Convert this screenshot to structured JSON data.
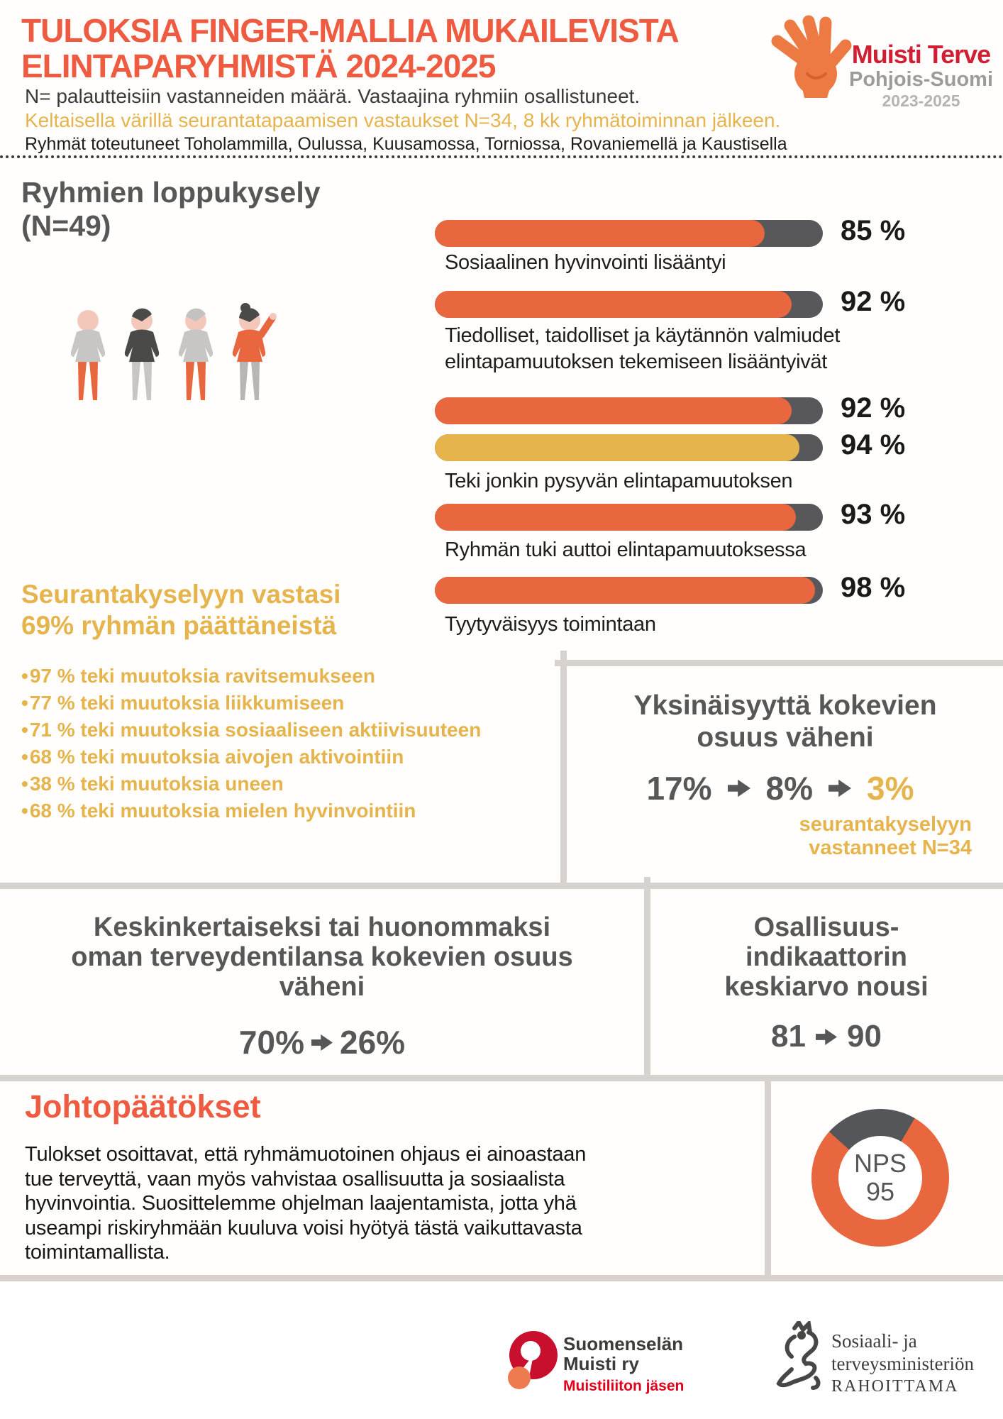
{
  "header": {
    "title_line1": "TULOKSIA FINGER-MALLIA MUKAILEVISTA",
    "title_line2": "ELINTAPARYHMISTÄ 2024-2025",
    "subtitle_dark": "N= palautteisiin vastanneiden määrä. Vastaajina ryhmiin osallistuneet.",
    "subtitle_yellow": "Keltaisella värillä seurantatapaamisen vastaukset N=34, 8 kk ryhmätoiminnan jälkeen.",
    "subtitle_locations": "Ryhmät toteutuneet Toholammilla, Oulussa, Kuusamossa, Torniossa, Rovaniemellä ja Kaustisella",
    "logo": {
      "icon": "hand-icon",
      "name": "Muisti Terve",
      "region": "Pohjois-Suomi",
      "years": "2023-2025"
    }
  },
  "final_survey": {
    "heading_line1": "Ryhmien loppukysely",
    "heading_line2": "(N=49)"
  },
  "followup": {
    "heading_line1": "Seurantakyselyyn vastasi",
    "heading_line2": "69% ryhmän päättäneistä",
    "items": [
      "97 % teki muutoksia ravitsemukseen",
      "77 % teki muutoksia liikkumiseen",
      "71 % teki muutoksia sosiaaliseen aktiivisuuteen",
      "68 % teki muutoksia aivojen aktivointiin",
      "38 % teki muutoksia uneen",
      "68 % teki muutoksia mielen hyvinvointiin"
    ]
  },
  "loneliness": {
    "title_line1": "Yksinäisyyttä kokevien",
    "title_line2": "osuus väheni",
    "value1": "17%",
    "value2": "8%",
    "value3": "3%",
    "note_line1": "seurantakyselyyn",
    "note_line2": "vastanneet N=34"
  },
  "health": {
    "title_line1": "Keskinkertaiseksi tai huonommaksi",
    "title_line2": "oman terveydentilansa kokevien osuus",
    "title_line3": "väheni",
    "from": "70%",
    "to": "26%"
  },
  "participation": {
    "title_line1": "Osallisuus-",
    "title_line2": "indikaattorin",
    "title_line3": "keskiarvo nousi",
    "from": "81",
    "to": "90"
  },
  "conclusions": {
    "heading": "Johtopäätökset",
    "body": "Tulokset osoittavat, että ryhmämuotoinen ohjaus ei ainoastaan tue terveyttä, vaan myös vahvistaa osallisuutta ja sosiaalista hyvinvointia. Suosittelemme ohjelman laajentamista, jotta yhä useampi riskiryhmään kuuluva voisi hyötyä tästä vaikuttavasta toimintamallista."
  },
  "nps": {
    "label": "NPS",
    "value": "95"
  },
  "footer": {
    "muisti": {
      "line1": "Suomenselän",
      "line2": "Muisti ry",
      "sub": "Muistiliiton jäsen"
    },
    "ministry": {
      "line1": "Sosiaali- ja",
      "line2": "terveysministeriön",
      "line3": "RAHOITTAMA"
    }
  },
  "colors": {
    "orange": "#e8673f",
    "yellow": "#e6b44d",
    "dark_gray": "#575757",
    "track_gray": "#58585a",
    "divider_gray": "#d8d2cf",
    "title_orange": "#ef5b40",
    "logo_red": "#d01f33"
  },
  "chart_data": [
    {
      "type": "bar",
      "title": "Ryhmien loppukysely (N=49)",
      "unit": "%",
      "xlim": [
        0,
        100
      ],
      "note": "Keltaisella värillä seurantatapaamisen vastaukset N=34",
      "series": [
        {
          "label": "Sosiaalinen hyvinvointi lisääntyi",
          "value": 85,
          "group": "loppukysely",
          "color": "#e8673f"
        },
        {
          "label": "Tiedolliset, taidolliset ja käytännön valmiudet elintapamuutoksen tekemiseen lisääntyivät",
          "value": 92,
          "group": "loppukysely",
          "color": "#e8673f"
        },
        {
          "label": "Teki jonkin pysyvän elintapamuutoksen",
          "value": 92,
          "group": "loppukysely",
          "color": "#e8673f",
          "show_caption": false
        },
        {
          "label": "Teki jonkin pysyvän elintapamuutoksen",
          "value": 94,
          "group": "seurantakysely N=34",
          "color": "#e6b44d"
        },
        {
          "label": "Ryhmän tuki auttoi elintapamuutoksessa",
          "value": 93,
          "group": "loppukysely",
          "color": "#e8673f"
        },
        {
          "label": "Tyytyväisyys toimintaan",
          "value": 98,
          "group": "loppukysely",
          "color": "#e8673f"
        }
      ]
    },
    {
      "type": "bar",
      "title": "Seurantakyselyyn vastasi 69% ryhmän päättäneistä",
      "unit": "%",
      "categories": [
        "ravitsemukseen",
        "liikkumiseen",
        "sosiaaliseen aktiivisuuteen",
        "aivojen aktivointiin",
        "uneen",
        "mielen hyvinvointiin"
      ],
      "values": [
        97,
        77,
        71,
        68,
        38,
        68
      ]
    },
    {
      "type": "line",
      "title": "Yksinäisyyttä kokevien osuus väheni",
      "values": [
        17,
        8,
        3
      ],
      "unit": "%",
      "note": "seurantakyselyyn vastanneet N=34"
    },
    {
      "type": "line",
      "title": "Keskinkertaiseksi tai huonommaksi oman terveydentilansa kokevien osuus väheni",
      "values": [
        70,
        26
      ],
      "unit": "%"
    },
    {
      "type": "line",
      "title": "Osallisuusindikaattorin keskiarvo nousi",
      "values": [
        81,
        90
      ]
    },
    {
      "type": "pie",
      "title": "NPS",
      "values": [
        95,
        5
      ],
      "center_label": "NPS 95"
    }
  ]
}
